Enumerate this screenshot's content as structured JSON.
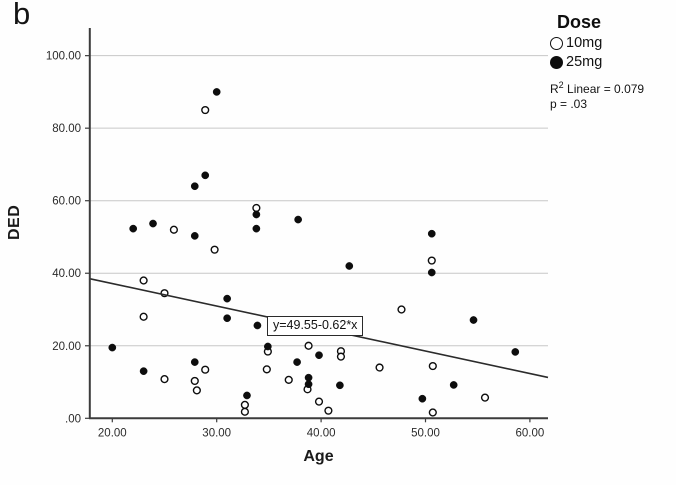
{
  "figure_label": "b",
  "legend": {
    "title": "Dose",
    "entries": [
      {
        "label": "10mg",
        "marker": "open-circle"
      },
      {
        "label": "25mg",
        "marker": "filled-circle"
      }
    ],
    "r2_prefix": "R",
    "r2_sup": "2",
    "r2_text": " Linear = 0.079",
    "p_text": "p = .03"
  },
  "chart_data": {
    "type": "scatter",
    "title": "",
    "xlabel": "Age",
    "ylabel": "DED",
    "xlim": [
      17.8,
      61.7
    ],
    "ylim": [
      0,
      107.5
    ],
    "x_ticks": [
      20,
      30,
      40,
      50,
      60
    ],
    "x_tick_labels": [
      "20.00",
      "30.00",
      "40.00",
      "50.00",
      "60.00"
    ],
    "y_ticks": [
      0,
      20,
      40,
      60,
      80,
      100
    ],
    "y_tick_labels": [
      ".00",
      "20.00",
      "40.00",
      "60.00",
      "80.00",
      "100.00"
    ],
    "grid": "horizontal-only",
    "legend_position": "outside-top-right",
    "annotations": {
      "equation": "y=49.55-0.62*x",
      "r_squared": "R2 Linear = 0.079",
      "p_value": "p = .03"
    },
    "regression": {
      "intercept": 49.55,
      "slope": -0.62
    },
    "series": [
      {
        "name": "10mg",
        "marker": "open-circle",
        "points": [
          [
            28.9,
            85.0
          ],
          [
            33.8,
            58.0
          ],
          [
            25.9,
            52.0
          ],
          [
            29.8,
            46.5
          ],
          [
            50.6,
            43.5
          ],
          [
            23.0,
            38.0
          ],
          [
            25.0,
            34.5
          ],
          [
            47.7,
            30.0
          ],
          [
            23.0,
            28.0
          ],
          [
            38.8,
            20.0
          ],
          [
            41.9,
            18.5
          ],
          [
            34.9,
            18.4
          ],
          [
            41.9,
            17.0
          ],
          [
            50.7,
            14.4
          ],
          [
            45.6,
            14.0
          ],
          [
            34.8,
            13.5
          ],
          [
            28.9,
            13.4
          ],
          [
            25.0,
            10.8
          ],
          [
            36.9,
            10.6
          ],
          [
            27.9,
            10.3
          ],
          [
            38.7,
            8.0
          ],
          [
            28.1,
            7.7
          ],
          [
            55.7,
            5.7
          ],
          [
            39.8,
            4.6
          ],
          [
            32.7,
            3.7
          ],
          [
            40.7,
            2.1
          ],
          [
            32.7,
            1.8
          ],
          [
            50.7,
            1.6
          ]
        ]
      },
      {
        "name": "25mg",
        "marker": "filled-circle",
        "points": [
          [
            30.0,
            90.0
          ],
          [
            28.9,
            67.0
          ],
          [
            27.9,
            64.0
          ],
          [
            33.8,
            56.2
          ],
          [
            37.8,
            54.8
          ],
          [
            23.9,
            53.7
          ],
          [
            22.0,
            52.3
          ],
          [
            33.8,
            52.3
          ],
          [
            50.6,
            50.9
          ],
          [
            27.9,
            50.3
          ],
          [
            42.7,
            42.0
          ],
          [
            50.6,
            40.2
          ],
          [
            31.0,
            33.0
          ],
          [
            31.0,
            27.6
          ],
          [
            54.6,
            27.1
          ],
          [
            33.9,
            25.6
          ],
          [
            34.9,
            19.8
          ],
          [
            20.0,
            19.5
          ],
          [
            58.6,
            18.3
          ],
          [
            39.8,
            17.4
          ],
          [
            37.7,
            15.5
          ],
          [
            27.9,
            15.5
          ],
          [
            23.0,
            13.0
          ],
          [
            38.8,
            11.2
          ],
          [
            38.8,
            9.4
          ],
          [
            52.7,
            9.2
          ],
          [
            41.8,
            9.1
          ],
          [
            32.9,
            6.3
          ],
          [
            49.7,
            5.4
          ]
        ]
      }
    ],
    "colors": {
      "point": "#0d0d0d",
      "open_fill": "#ffffff",
      "gridline": "#c7c7c7",
      "axis": "#3c3c3c",
      "regression_line": "#2b2b2b",
      "background": "#ffffff"
    }
  }
}
